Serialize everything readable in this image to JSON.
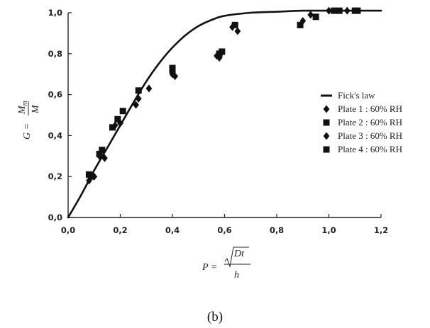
{
  "chart_data": {
    "type": "scatter",
    "title": "",
    "xlabel": "P = √(Dt) / h",
    "ylabel": "G = Mm / M",
    "xlim": [
      0,
      1.2
    ],
    "ylim": [
      0,
      1.0
    ],
    "x_ticks": [
      "0,0",
      "0,2",
      "0,4",
      "0,6",
      "0,8",
      "1,0",
      "1,2"
    ],
    "y_ticks": [
      "0,0",
      "0,2",
      "0,4",
      "0,6",
      "0,8",
      "1,0"
    ],
    "grid": false,
    "legend_position": "right",
    "series": [
      {
        "name": "Fick's law",
        "kind": "line",
        "x": [
          0,
          0.05,
          0.1,
          0.15,
          0.2,
          0.25,
          0.3,
          0.35,
          0.4,
          0.45,
          0.5,
          0.55,
          0.6,
          0.7,
          0.8,
          0.9,
          1.0,
          1.1,
          1.2
        ],
        "y": [
          0,
          0.11,
          0.23,
          0.34,
          0.45,
          0.56,
          0.665,
          0.755,
          0.83,
          0.89,
          0.935,
          0.965,
          0.985,
          1.0,
          1.005,
          1.01,
          1.01,
          1.01,
          1.01
        ]
      },
      {
        "name": "Plate 1 : 60% RH",
        "marker": "diamond",
        "x": [
          0.08,
          0.12,
          0.18,
          0.26,
          0.4,
          0.58,
          0.63,
          0.9,
          1.0
        ],
        "y": [
          0.18,
          0.3,
          0.45,
          0.55,
          0.7,
          0.78,
          0.93,
          0.96,
          1.01
        ]
      },
      {
        "name": "Plate 2 : 60% RH",
        "marker": "square",
        "x": [
          0.08,
          0.13,
          0.19,
          0.27,
          0.4,
          0.59,
          0.89,
          1.04,
          1.1
        ],
        "y": [
          0.21,
          0.33,
          0.48,
          0.62,
          0.73,
          0.81,
          0.94,
          1.01,
          1.01
        ]
      },
      {
        "name": "Plate 3 : 60% RH",
        "marker": "diamond",
        "x": [
          0.1,
          0.14,
          0.2,
          0.27,
          0.31,
          0.41,
          0.57,
          0.65,
          0.93,
          1.07
        ],
        "y": [
          0.2,
          0.29,
          0.46,
          0.58,
          0.63,
          0.69,
          0.79,
          0.91,
          0.99,
          1.01
        ]
      },
      {
        "name": "Plate 4 : 60% RH",
        "marker": "square",
        "x": [
          0.09,
          0.12,
          0.17,
          0.21,
          0.4,
          0.58,
          0.64,
          0.95,
          1.02,
          1.11
        ],
        "y": [
          0.2,
          0.31,
          0.44,
          0.52,
          0.72,
          0.8,
          0.94,
          0.98,
          1.01,
          1.01
        ]
      }
    ]
  },
  "caption": "(b)"
}
